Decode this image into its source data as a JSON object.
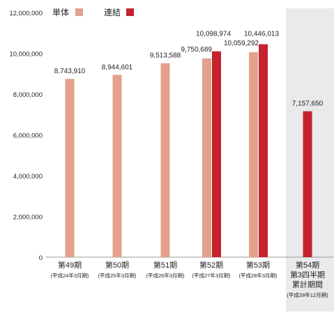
{
  "legend": {
    "standalone_label": "単体",
    "consolidated_label": "連結"
  },
  "colors": {
    "standalone": "#E3A28E",
    "consolidated": "#C4232E",
    "highlight_background": "#E8EAEC",
    "axis": "#999999",
    "text": "#222222"
  },
  "chart_data": {
    "type": "bar",
    "categories": [
      [
        "第49期",
        "(平成24年3月期)"
      ],
      [
        "第50期",
        "(平成25年3月期)"
      ],
      [
        "第51期",
        "(平成26年3月期)"
      ],
      [
        "第52期",
        "(平成27年3月期)"
      ],
      [
        "第53期",
        "(平成28年3月期)"
      ],
      [
        "第54期",
        "第3四半期",
        "累計期間",
        "(平成28年12月期)"
      ]
    ],
    "series": [
      {
        "name": "単体",
        "values": [
          8743910,
          8944601,
          9513588,
          9750689,
          10059292,
          null
        ],
        "labels": [
          "8,743,910",
          "8,944,601",
          "9,513,588",
          "9,750,689",
          "10,059,292",
          ""
        ]
      },
      {
        "name": "連結",
        "values": [
          null,
          null,
          null,
          10098974,
          10446013,
          7157650
        ],
        "labels": [
          "",
          "",
          "",
          "10,098,974",
          "10,446,013",
          "7,157,650"
        ]
      }
    ],
    "ylim": [
      0,
      12000000
    ],
    "y_ticks": [
      0,
      2000000,
      4000000,
      6000000,
      8000000,
      10000000,
      12000000
    ],
    "y_tick_labels": [
      "0",
      "2,000,000",
      "4,000,000",
      "6,000,000",
      "8,000,000",
      "10,000,000",
      "12,000,000"
    ],
    "highlighted_category_index": 5
  }
}
